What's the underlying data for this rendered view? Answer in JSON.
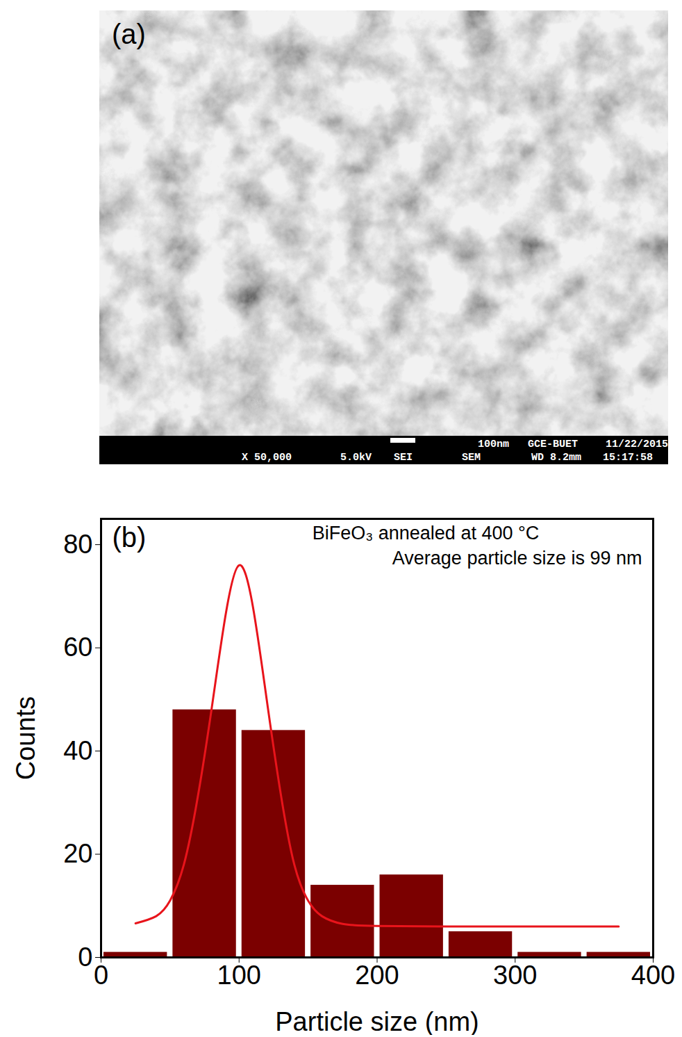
{
  "micrograph": {
    "panel_label": "(a)",
    "info_bar": [
      [
        "100nm",
        "GCE-BUET",
        "11/22/2015"
      ],
      [
        "X 50,000",
        "5.0kV",
        "SEI",
        "SEM",
        "WD 8.2mm",
        "15:17:58"
      ]
    ]
  },
  "chart_data": {
    "type": "histogram",
    "panel_label": "(b)",
    "annotations": [
      "BiFeO₃ annealed at 400 °C",
      "Average particle size is 99 nm"
    ],
    "x_label": "Particle size (nm)",
    "y_label": "Counts",
    "bins": [
      0,
      50,
      100,
      150,
      200,
      250,
      300,
      350,
      400
    ],
    "counts": [
      1,
      48,
      44,
      14,
      16,
      5,
      1,
      1
    ],
    "color": "#7b0000",
    "fit_curve": {
      "type": "line",
      "color": "#e8141b",
      "x": [
        25,
        40,
        50,
        60,
        70,
        80,
        90,
        100,
        110,
        120,
        130,
        140,
        150,
        160,
        175,
        200,
        250,
        300,
        375
      ],
      "y": [
        6.6,
        8,
        11,
        18,
        31,
        48,
        66,
        76,
        68,
        50,
        32,
        18,
        11,
        8,
        6.5,
        6.1,
        6,
        6,
        6
      ]
    },
    "xlim": [
      0,
      400
    ],
    "ylim": [
      0,
      85
    ],
    "xticks": [
      0,
      100,
      200,
      300,
      400
    ],
    "yticks": [
      0,
      20,
      40,
      60,
      80
    ],
    "grid": false
  }
}
